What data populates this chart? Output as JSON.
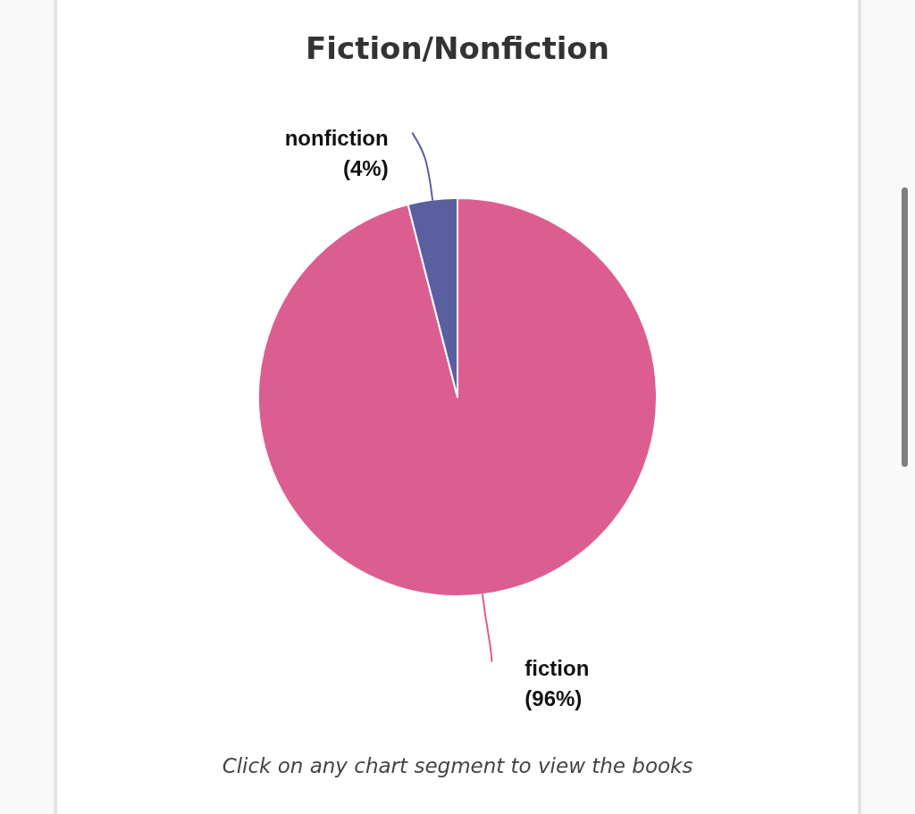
{
  "chart_data": {
    "type": "pie",
    "title": "Fiction/Nonfiction",
    "categories": [
      "fiction",
      "nonfiction"
    ],
    "values": [
      96,
      4
    ],
    "colors": [
      "#dc5e91",
      "#5a5f9f"
    ],
    "value_labels": [
      "(96%)",
      "(4%)"
    ],
    "annotations": [
      "Click on any chart segment to view the books"
    ]
  }
}
